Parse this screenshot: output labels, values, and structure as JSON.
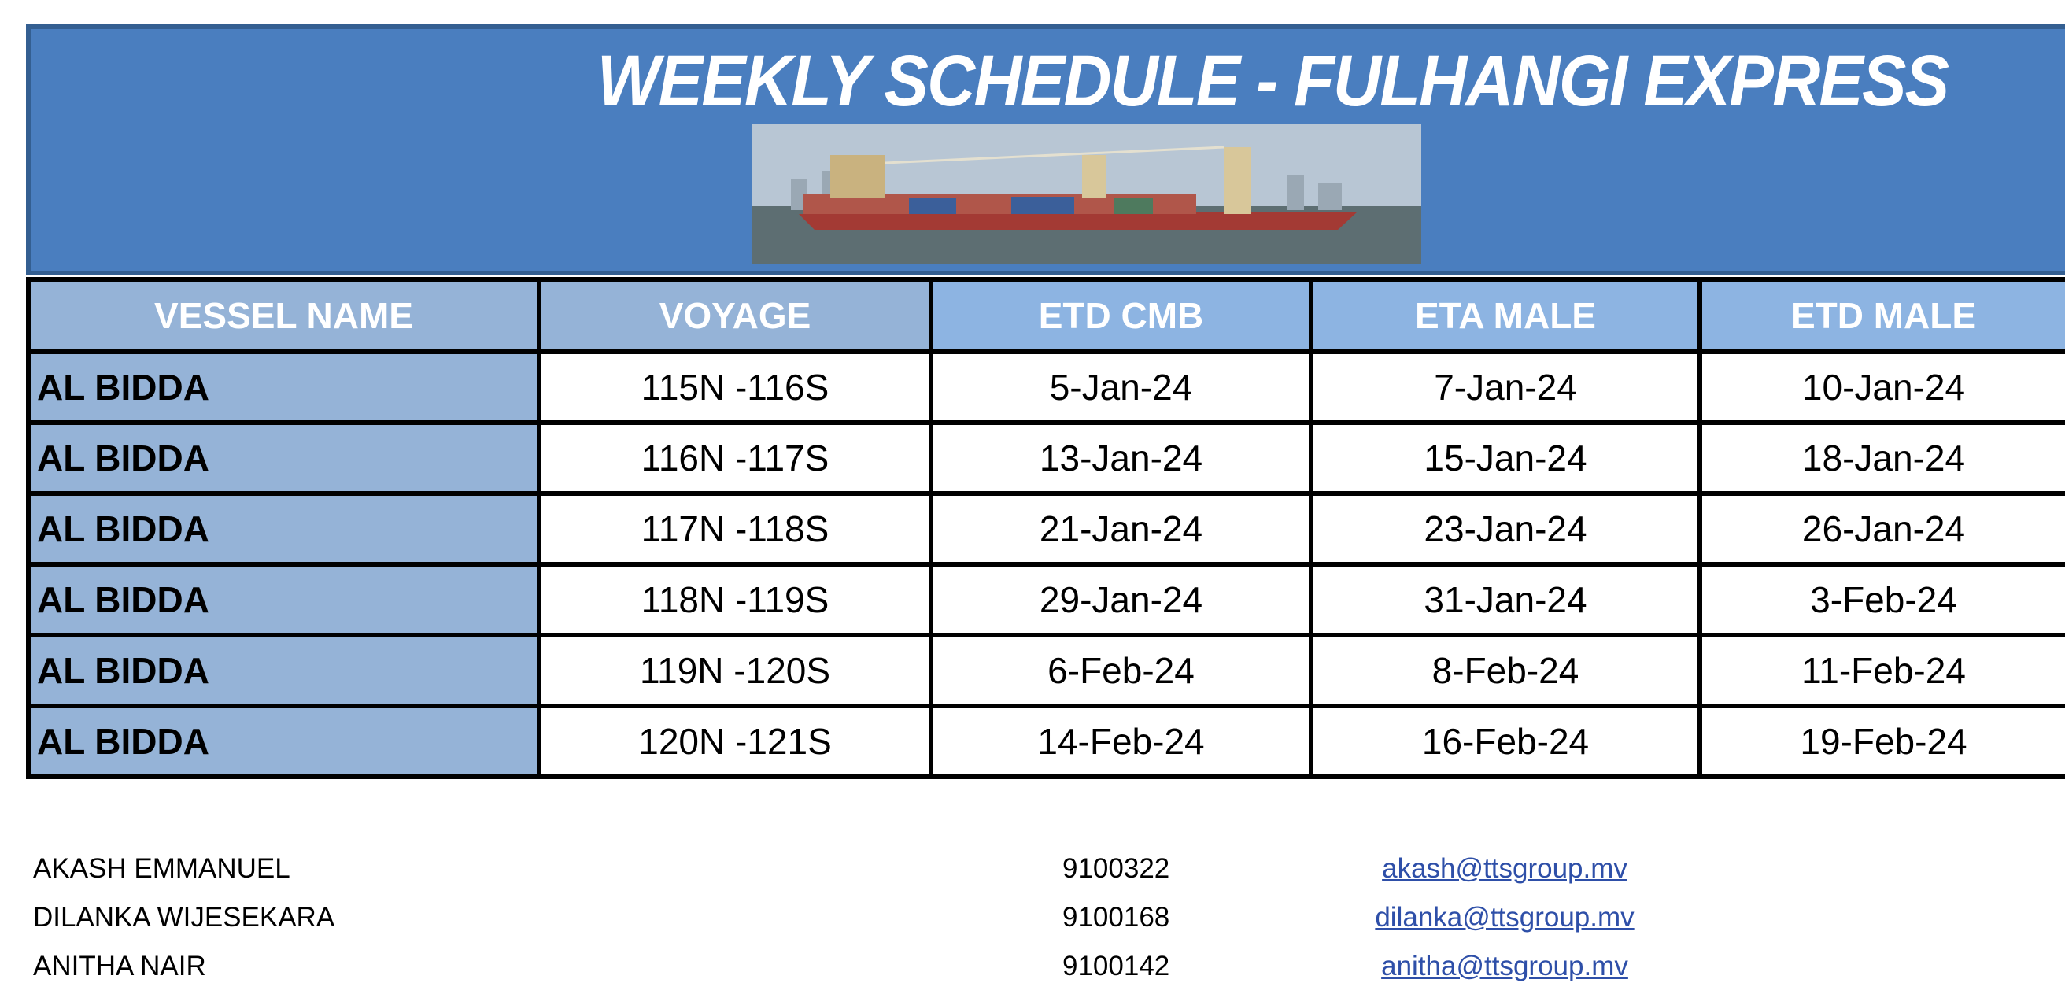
{
  "header": {
    "title": "WEEKLY SCHEDULE - FULHANGI EXPRESS",
    "image": "container-ship-photo"
  },
  "colors": {
    "banner": "#4a7ebf",
    "banner_border": "#345f91",
    "header_cell": "#95b3d7",
    "header_cell_alt": "#8db4e2",
    "link": "#2e4fa8"
  },
  "table": {
    "columns": [
      "VESSEL NAME",
      "VOYAGE",
      "ETD CMB",
      "ETA MALE",
      "ETD MALE"
    ],
    "rows": [
      [
        "AL BIDDA",
        "115N -116S",
        "5-Jan-24",
        "7-Jan-24",
        "10-Jan-24"
      ],
      [
        "AL BIDDA",
        "116N -117S",
        "13-Jan-24",
        "15-Jan-24",
        "18-Jan-24"
      ],
      [
        "AL BIDDA",
        "117N -118S",
        "21-Jan-24",
        "23-Jan-24",
        "26-Jan-24"
      ],
      [
        "AL BIDDA",
        "118N -119S",
        "29-Jan-24",
        "31-Jan-24",
        "3-Feb-24"
      ],
      [
        "AL BIDDA",
        "119N -120S",
        "6-Feb-24",
        "8-Feb-24",
        "11-Feb-24"
      ],
      [
        "AL BIDDA",
        "120N -121S",
        "14-Feb-24",
        "16-Feb-24",
        "19-Feb-24"
      ]
    ]
  },
  "contacts": [
    {
      "name": "AKASH EMMANUEL",
      "phone": "9100322",
      "email": "akash@ttsgroup.mv"
    },
    {
      "name": "DILANKA WIJESEKARA",
      "phone": "9100168",
      "email": "dilanka@ttsgroup.mv"
    },
    {
      "name": "ANITHA NAIR",
      "phone": "9100142",
      "email": "anitha@ttsgroup.mv"
    }
  ]
}
